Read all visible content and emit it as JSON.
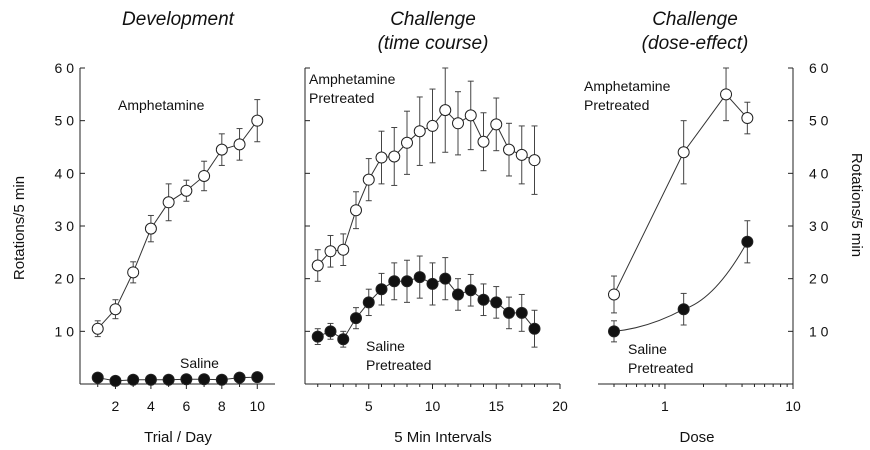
{
  "chart_data": [
    {
      "type": "line",
      "title": "Development",
      "xlabel": "Trial / Day",
      "ylabel": "Rotations/5  min",
      "xlim": [
        0,
        11
      ],
      "ylim": [
        0,
        60
      ],
      "xticks": [
        2,
        4,
        6,
        8,
        10
      ],
      "yticks": [
        10,
        20,
        30,
        40,
        50,
        60
      ],
      "ytick_labels": [
        "1 0",
        "2 0",
        "3 0",
        "4 0",
        "5 0",
        "6 0"
      ],
      "series": [
        {
          "name": "Amphetamine",
          "marker": "open-circle",
          "x": [
            1,
            2,
            3,
            4,
            5,
            6,
            7,
            8,
            9,
            10
          ],
          "values": [
            10.5,
            14.2,
            21.2,
            29.5,
            34.5,
            36.7,
            39.5,
            44.5,
            45.5,
            50.0
          ],
          "err": [
            1.5,
            1.8,
            2.0,
            2.5,
            3.5,
            2.0,
            2.8,
            3.0,
            3.0,
            4.0
          ]
        },
        {
          "name": "Saline",
          "marker": "filled-circle",
          "x": [
            1,
            2,
            3,
            4,
            5,
            6,
            7,
            8,
            9,
            10
          ],
          "values": [
            1.2,
            0.6,
            0.8,
            0.8,
            0.8,
            0.9,
            0.9,
            0.8,
            1.2,
            1.3
          ],
          "err": [
            0.3,
            0.3,
            0.3,
            0.3,
            0.3,
            0.3,
            0.3,
            0.3,
            0.3,
            0.3
          ]
        }
      ]
    },
    {
      "type": "line",
      "title": "Challenge",
      "subtitle": "(time course)",
      "xlabel": "5  Min  Intervals",
      "xlim": [
        0,
        20
      ],
      "ylim": [
        0,
        60
      ],
      "xticks": [
        5,
        10,
        15,
        20
      ],
      "series": [
        {
          "name": "Amphetamine\nPretreated",
          "marker": "open-circle",
          "x": [
            1,
            2,
            3,
            4,
            5,
            6,
            7,
            8,
            9,
            10,
            11,
            12,
            13,
            14,
            15,
            16,
            17,
            18
          ],
          "values": [
            22.5,
            25.2,
            25.5,
            33.0,
            38.8,
            43.0,
            43.2,
            45.8,
            48.0,
            49.0,
            52.0,
            49.5,
            51.0,
            46.0,
            49.3,
            44.5,
            43.5,
            42.5
          ],
          "err": [
            3.0,
            3.0,
            3.0,
            3.5,
            4.0,
            5.0,
            5.5,
            6.0,
            6.5,
            7.0,
            8.0,
            6.0,
            6.5,
            5.5,
            5.0,
            5.0,
            5.5,
            6.5
          ]
        },
        {
          "name": "Saline\nPretreated",
          "marker": "filled-circle",
          "x": [
            1,
            2,
            3,
            4,
            5,
            6,
            7,
            8,
            9,
            10,
            11,
            12,
            13,
            14,
            15,
            16,
            17,
            18
          ],
          "values": [
            9.0,
            10.0,
            8.5,
            12.5,
            15.5,
            18.0,
            19.5,
            19.5,
            20.3,
            19.0,
            20.0,
            17.0,
            17.8,
            16.0,
            15.5,
            13.5,
            13.5,
            10.5
          ],
          "err": [
            1.5,
            1.5,
            1.5,
            2.0,
            2.5,
            3.0,
            3.5,
            4.0,
            4.0,
            4.0,
            4.0,
            3.0,
            3.0,
            3.0,
            3.0,
            3.0,
            3.5,
            3.5
          ]
        }
      ]
    },
    {
      "type": "line",
      "title": "Challenge",
      "subtitle": "(dose-effect)",
      "xlabel": "Dose",
      "ylabel": "Rotations/5  min",
      "xscale": "log",
      "xlim": [
        0.3,
        10
      ],
      "ylim": [
        0,
        60
      ],
      "xticks": [
        1,
        10
      ],
      "ytick_labels": [
        "1 0",
        "2 0",
        "3 0",
        "4 0",
        "5 0",
        "6 0"
      ],
      "series": [
        {
          "name": "Amphetamine\nPretreated",
          "marker": "open-circle",
          "x": [
            0.4,
            1.4,
            3.0,
            4.4
          ],
          "values": [
            17.0,
            44.0,
            55.0,
            50.5
          ],
          "err": [
            3.5,
            6.0,
            5.0,
            3.0
          ]
        },
        {
          "name": "Saline\nPretreated",
          "marker": "filled-circle",
          "x": [
            0.4,
            1.4,
            4.4
          ],
          "values": [
            10.0,
            14.2,
            27.0
          ],
          "err": [
            2.0,
            3.0,
            4.0
          ]
        }
      ]
    }
  ]
}
